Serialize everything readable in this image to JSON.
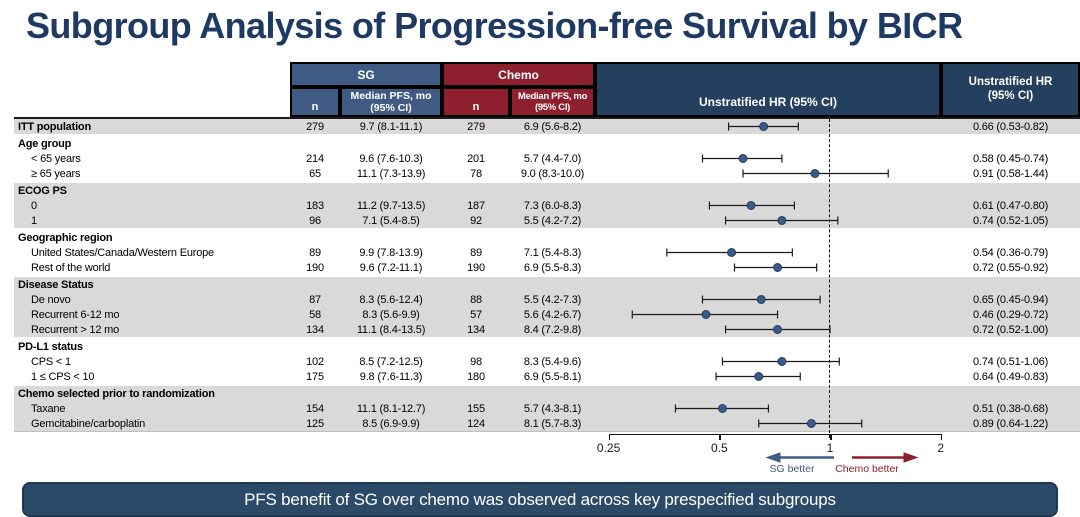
{
  "slide": {
    "title": "Subgroup Analysis of Progression-free Survival by BICR",
    "banner": "PFS benefit of SG over chemo was observed across key prespecified subgroups"
  },
  "colors": {
    "title_navy": "#1e3a63",
    "navy": "#24405e",
    "sg_blue": "#3f5b84",
    "chemo_red": "#8e1f2f",
    "band_gray": "#d9d9d9",
    "dot": "#3a5a8a",
    "banner": "#2a4a68"
  },
  "table": {
    "group_sg": "SG",
    "group_chemo": "Chemo",
    "n_label": "n",
    "median_line1": "Median PFS, mo",
    "median_line2": "(95% CI)",
    "plot_header": "Unstratified HR (95% CI)",
    "hr_line1": "Unstratified HR",
    "hr_line2": "(95% CI)"
  },
  "axis": {
    "tick_labels": [
      "0.25",
      "0.5",
      "1",
      "2"
    ],
    "sg_better": "SG better",
    "chemo_better": "Chemo better"
  },
  "chart_data": {
    "type": "forest",
    "x_scale": "log",
    "x_ticks": [
      0.25,
      0.5,
      1,
      2
    ],
    "reference_line": 1,
    "xlabel": "Unstratified HR (95% CI)",
    "sections": [
      {
        "band": "gray",
        "rows": [
          {
            "label": "ITT population",
            "bold": true,
            "sg_n": "279",
            "sg_pfs": "9.7 (8.1-11.1)",
            "chemo_n": "279",
            "chemo_pfs": "6.9 (5.6-8.2)",
            "hr": 0.66,
            "lo": 0.53,
            "hi": 0.82,
            "hr_text": "0.66 (0.53-0.82)"
          }
        ]
      },
      {
        "band": "white",
        "rows": [
          {
            "label": "Age group",
            "bold": true
          },
          {
            "label": "< 65 years",
            "indent": true,
            "sg_n": "214",
            "sg_pfs": "9.6 (7.6-10.3)",
            "chemo_n": "201",
            "chemo_pfs": "5.7 (4.4-7.0)",
            "hr": 0.58,
            "lo": 0.45,
            "hi": 0.74,
            "hr_text": "0.58 (0.45-0.74)"
          },
          {
            "label": "≥ 65 years",
            "indent": true,
            "sg_n": "65",
            "sg_pfs": "11.1 (7.3-13.9)",
            "chemo_n": "78",
            "chemo_pfs": "9.0 (8.3-10.0)",
            "hr": 0.91,
            "lo": 0.58,
            "hi": 1.44,
            "hr_text": "0.91 (0.58-1.44)"
          }
        ]
      },
      {
        "band": "gray",
        "rows": [
          {
            "label": "ECOG PS",
            "bold": true
          },
          {
            "label": "0",
            "indent": true,
            "sg_n": "183",
            "sg_pfs": "11.2 (9.7-13.5)",
            "chemo_n": "187",
            "chemo_pfs": "7.3 (6.0-8.3)",
            "hr": 0.61,
            "lo": 0.47,
            "hi": 0.8,
            "hr_text": "0.61 (0.47-0.80)"
          },
          {
            "label": "1",
            "indent": true,
            "sg_n": "96",
            "sg_pfs": "7.1 (5.4-8.5)",
            "chemo_n": "92",
            "chemo_pfs": "5.5 (4.2-7.2)",
            "hr": 0.74,
            "lo": 0.52,
            "hi": 1.05,
            "hr_text": "0.74 (0.52-1.05)"
          }
        ]
      },
      {
        "band": "white",
        "rows": [
          {
            "label": "Geographic region",
            "bold": true
          },
          {
            "label": "United States/Canada/Western Europe",
            "indent": true,
            "sg_n": "89",
            "sg_pfs": "9.9 (7.8-13.9)",
            "chemo_n": "89",
            "chemo_pfs": "7.1 (5.4-8.3)",
            "hr": 0.54,
            "lo": 0.36,
            "hi": 0.79,
            "hr_text": "0.54 (0.36-0.79)"
          },
          {
            "label": "Rest of the world",
            "indent": true,
            "sg_n": "190",
            "sg_pfs": "9.6 (7.2-11.1)",
            "chemo_n": "190",
            "chemo_pfs": "6.9 (5.5-8.3)",
            "hr": 0.72,
            "lo": 0.55,
            "hi": 0.92,
            "hr_text": "0.72 (0.55-0.92)"
          }
        ]
      },
      {
        "band": "gray",
        "rows": [
          {
            "label": "Disease Status",
            "bold": true
          },
          {
            "label": "De novo",
            "indent": true,
            "sg_n": "87",
            "sg_pfs": "8.3 (5.6-12.4)",
            "chemo_n": "88",
            "chemo_pfs": "5.5 (4.2-7.3)",
            "hr": 0.65,
            "lo": 0.45,
            "hi": 0.94,
            "hr_text": "0.65 (0.45-0.94)"
          },
          {
            "label": "Recurrent 6-12 mo",
            "indent": true,
            "sg_n": "58",
            "sg_pfs": "8.3 (5.6-9.9)",
            "chemo_n": "57",
            "chemo_pfs": "5.6 (4.2-6.7)",
            "hr": 0.46,
            "lo": 0.29,
            "hi": 0.72,
            "hr_text": "0.46 (0.29-0.72)"
          },
          {
            "label": "Recurrent > 12 mo",
            "indent": true,
            "sg_n": "134",
            "sg_pfs": "11.1 (8.4-13.5)",
            "chemo_n": "134",
            "chemo_pfs": "8.4 (7.2-9.8)",
            "hr": 0.72,
            "lo": 0.52,
            "hi": 1.0,
            "hr_text": "0.72 (0.52-1.00)"
          }
        ]
      },
      {
        "band": "white",
        "rows": [
          {
            "label": "PD-L1 status",
            "bold": true
          },
          {
            "label": "CPS < 1",
            "indent": true,
            "sg_n": "102",
            "sg_pfs": "8.5 (7.2-12.5)",
            "chemo_n": "98",
            "chemo_pfs": "8.3 (5.4-9.6)",
            "hr": 0.74,
            "lo": 0.51,
            "hi": 1.06,
            "hr_text": "0.74 (0.51-1.06)"
          },
          {
            "label": "1 ≤ CPS < 10",
            "indent": true,
            "sg_n": "175",
            "sg_pfs": "9.8 (7.6-11.3)",
            "chemo_n": "180",
            "chemo_pfs": "6.9 (5.5-8.1)",
            "hr": 0.64,
            "lo": 0.49,
            "hi": 0.83,
            "hr_text": "0.64 (0.49-0.83)"
          }
        ]
      },
      {
        "band": "gray",
        "rows": [
          {
            "label": "Chemo selected prior to randomization",
            "bold": true
          },
          {
            "label": "Taxane",
            "indent": true,
            "sg_n": "154",
            "sg_pfs": "11.1 (8.1-12.7)",
            "chemo_n": "155",
            "chemo_pfs": "5.7 (4.3-8.1)",
            "hr": 0.51,
            "lo": 0.38,
            "hi": 0.68,
            "hr_text": "0.51 (0.38-0.68)"
          },
          {
            "label": "Gemcitabine/carboplatin",
            "indent": true,
            "sg_n": "125",
            "sg_pfs": "8.5 (6.9-9.9)",
            "chemo_n": "124",
            "chemo_pfs": "8.1 (5.7-8.3)",
            "hr": 0.89,
            "lo": 0.64,
            "hi": 1.22,
            "hr_text": "0.89 (0.64-1.22)"
          }
        ]
      }
    ]
  }
}
